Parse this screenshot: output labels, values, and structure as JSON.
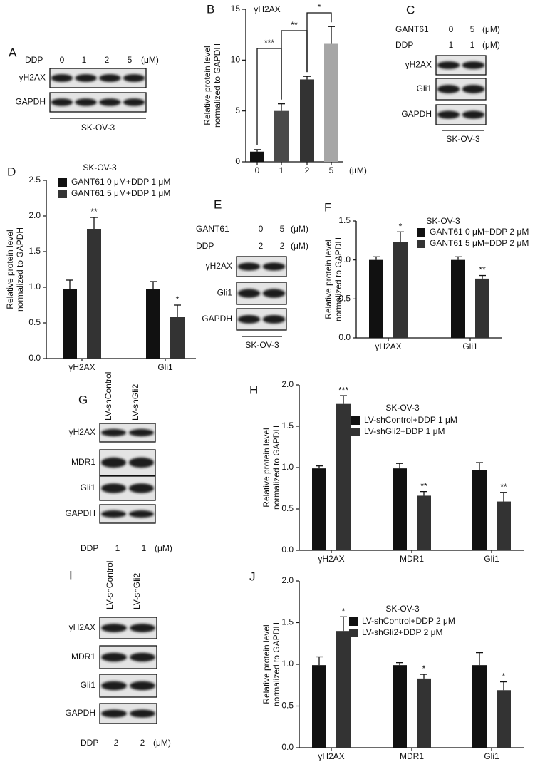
{
  "chart_data": [
    {
      "type": "bar",
      "panel": "B",
      "title": "γH2AX",
      "ylabel": [
        "Relative protein level",
        "normalized to GAPDH"
      ],
      "categories": [
        "0",
        "1",
        "2",
        "5"
      ],
      "x_unit": "(μM)",
      "values": [
        1.0,
        5.0,
        8.1,
        11.6
      ],
      "errors": [
        0.2,
        0.7,
        0.3,
        1.7
      ],
      "colors": [
        "#111111",
        "#4a4a4a",
        "#333333",
        "#a6a6a6"
      ],
      "brackets": [
        "***",
        "**",
        "*"
      ],
      "ylim": [
        0,
        15
      ],
      "yticks": [
        0,
        5,
        10,
        15
      ]
    },
    {
      "type": "bar",
      "panel": "D",
      "title": "SK-OV-3",
      "ylabel": [
        "Relative protein level",
        "normalized to GAPDH"
      ],
      "categories": [
        "γH2AX",
        "Gli1"
      ],
      "series": [
        {
          "name": "GANT61 0 μM+DDP 1 μM",
          "color": "#111111",
          "values": [
            0.98,
            0.98
          ],
          "errors": [
            0.12,
            0.1
          ]
        },
        {
          "name": "GANT61 5 μM+DDP 1 μM",
          "color": "#333333",
          "values": [
            1.82,
            0.58
          ],
          "errors": [
            0.16,
            0.17
          ],
          "significance": [
            "**",
            "*"
          ]
        }
      ],
      "ylim": [
        0,
        2.5
      ],
      "yticks": [
        {
          "value": 0,
          "label": "0.0"
        },
        0.5,
        {
          "value": 1,
          "label": "1.0"
        },
        1.5,
        {
          "value": 2,
          "label": "2.0"
        },
        2.5
      ]
    },
    {
      "type": "bar",
      "panel": "F",
      "title": "SK-OV-3",
      "ylabel": [
        "Relative protein level",
        "normalized to GAPDH"
      ],
      "categories": [
        "γH2AX",
        "Gli1"
      ],
      "series": [
        {
          "name": "GANT61 0 μM+DDP 2 μM",
          "color": "#111111",
          "values": [
            1.0,
            1.0
          ],
          "errors": [
            0.04,
            0.04
          ]
        },
        {
          "name": "GANT61 5 μM+DDP 2 μM",
          "color": "#333333",
          "values": [
            1.23,
            0.76
          ],
          "errors": [
            0.13,
            0.04
          ],
          "significance": [
            "*",
            "**"
          ]
        }
      ],
      "ylim": [
        0,
        1.5
      ],
      "yticks": [
        {
          "value": 0,
          "label": "0.0"
        },
        0.5,
        {
          "value": 1,
          "label": "1.0"
        },
        1.5
      ]
    },
    {
      "type": "bar",
      "panel": "H",
      "title": "SK-OV-3",
      "ylabel": [
        "Relative protein level",
        "normalized to GAPDH"
      ],
      "categories": [
        "γH2AX",
        "MDR1",
        "Gli1"
      ],
      "series": [
        {
          "name": "LV-shControl+DDP 1 μM",
          "color": "#111111",
          "values": [
            0.99,
            0.99,
            0.97
          ],
          "errors": [
            0.03,
            0.06,
            0.09
          ]
        },
        {
          "name": "LV-shGli2+DDP 1 μM",
          "color": "#333333",
          "values": [
            1.77,
            0.66,
            0.59
          ],
          "errors": [
            0.1,
            0.05,
            0.11
          ],
          "significance": [
            "***",
            "**",
            "**"
          ]
        }
      ],
      "ylim": [
        0,
        2
      ],
      "yticks": [
        {
          "value": 0,
          "label": "0.0"
        },
        0.5,
        {
          "value": 1,
          "label": "1.0"
        },
        1.5,
        {
          "value": 2,
          "label": "2.0"
        }
      ]
    },
    {
      "type": "bar",
      "panel": "J",
      "title": "SK-OV-3",
      "ylabel": [
        "Relative protein level",
        "normalized to GAPDH"
      ],
      "categories": [
        "γH2AX",
        "MDR1",
        "Gli1"
      ],
      "series": [
        {
          "name": "LV-shControl+DDP 2 μM",
          "color": "#111111",
          "values": [
            0.99,
            0.99,
            0.99
          ],
          "errors": [
            0.1,
            0.03,
            0.15
          ]
        },
        {
          "name": "LV-shGli2+DDP 2 μM",
          "color": "#333333",
          "values": [
            1.4,
            0.83,
            0.69
          ],
          "errors": [
            0.17,
            0.05,
            0.1
          ],
          "significance": [
            "*",
            "*",
            "*"
          ]
        }
      ],
      "ylim": [
        0,
        2
      ],
      "yticks": [
        {
          "value": 0,
          "label": "0.0"
        },
        0.5,
        {
          "value": 1,
          "label": "1.0"
        },
        1.5,
        {
          "value": 2,
          "label": "2.0"
        }
      ]
    }
  ],
  "blots": [
    {
      "panel": "A",
      "conditions": [
        {
          "label": "DDP",
          "lanes": [
            "0",
            "1",
            "2",
            "5"
          ],
          "unit": "(μM)"
        }
      ],
      "rows": [
        "γH2AX",
        "GAPDH"
      ],
      "cell_line": "SK-OV-3"
    },
    {
      "panel": "C",
      "conditions": [
        {
          "label": "GANT61",
          "lanes": [
            "0",
            "5"
          ],
          "unit": "(μM)"
        },
        {
          "label": "DDP",
          "lanes": [
            "1",
            "1"
          ],
          "unit": "(μM)"
        }
      ],
      "rows": [
        "γH2AX",
        "Gli1",
        "GAPDH"
      ],
      "cell_line": "SK-OV-3"
    },
    {
      "panel": "E",
      "conditions": [
        {
          "label": "GANT61",
          "lanes": [
            "0",
            "5"
          ],
          "unit": "(μM)"
        },
        {
          "label": "DDP",
          "lanes": [
            "2",
            "2"
          ],
          "unit": "(μM)"
        }
      ],
      "rows": [
        "γH2AX",
        "Gli1",
        "GAPDH"
      ],
      "cell_line": "SK-OV-3"
    },
    {
      "panel": "G",
      "lane_labels": [
        "LV-shControl",
        "LV-shGli2"
      ],
      "rows": [
        "γH2AX",
        "MDR1",
        "Gli1",
        "GAPDH"
      ],
      "conditions": [
        {
          "label": "DDP",
          "lanes": [
            "1",
            "1"
          ],
          "unit": "(μM)"
        }
      ]
    },
    {
      "panel": "I",
      "lane_labels": [
        "LV-shControl",
        "LV-shGli2"
      ],
      "rows": [
        "γH2AX",
        "MDR1",
        "Gli1",
        "GAPDH"
      ],
      "conditions": [
        {
          "label": "DDP",
          "lanes": [
            "2",
            "2"
          ],
          "unit": "(μM)"
        }
      ]
    }
  ]
}
